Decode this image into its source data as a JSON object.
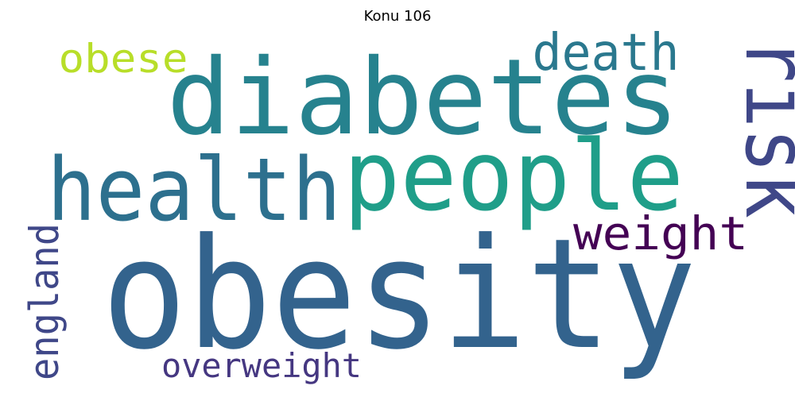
{
  "title": "Konu 106",
  "words": [
    {
      "text": "diabetes",
      "color": "#26828e"
    },
    {
      "text": "obesity",
      "color": "#33638d"
    },
    {
      "text": "people",
      "color": "#1f9e89"
    },
    {
      "text": "health",
      "color": "#2d708e"
    },
    {
      "text": "risk",
      "color": "#3f4788"
    },
    {
      "text": "death",
      "color": "#2a788e"
    },
    {
      "text": "obese",
      "color": "#b8de29"
    },
    {
      "text": "weight",
      "color": "#440154"
    },
    {
      "text": "england",
      "color": "#3f4788"
    },
    {
      "text": "overweight",
      "color": "#453781"
    }
  ]
}
